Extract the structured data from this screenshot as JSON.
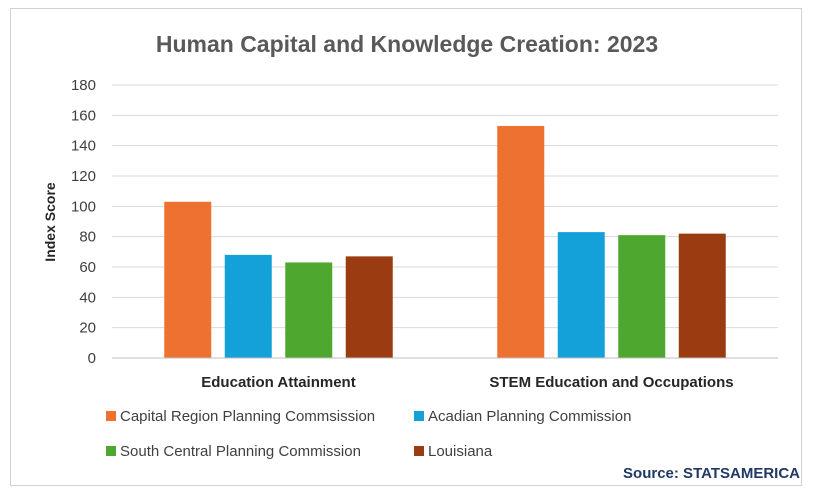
{
  "chart_data": {
    "type": "bar",
    "title": "Human Capital and Knowledge Creation: 2023",
    "ylabel": "Index Score",
    "xlabel": "",
    "ylim": [
      0,
      180
    ],
    "yticks": [
      0,
      20,
      40,
      60,
      80,
      100,
      120,
      140,
      160,
      180
    ],
    "grid": true,
    "legend_position": "bottom",
    "categories": [
      "Education Attainment",
      "STEM Education and Occupations"
    ],
    "series": [
      {
        "name": "Capital Region Planning Commsission",
        "color": "#ED7131",
        "values": [
          103,
          153
        ]
      },
      {
        "name": "Acadian Planning Commission",
        "color": "#14A0D8",
        "values": [
          68,
          83
        ]
      },
      {
        "name": "South Central Planning Commission",
        "color": "#4EA72E",
        "values": [
          63,
          81
        ]
      },
      {
        "name": "Louisiana",
        "color": "#9A3B11",
        "values": [
          67,
          82
        ]
      }
    ]
  },
  "source": "Source: STATSAMERICA"
}
